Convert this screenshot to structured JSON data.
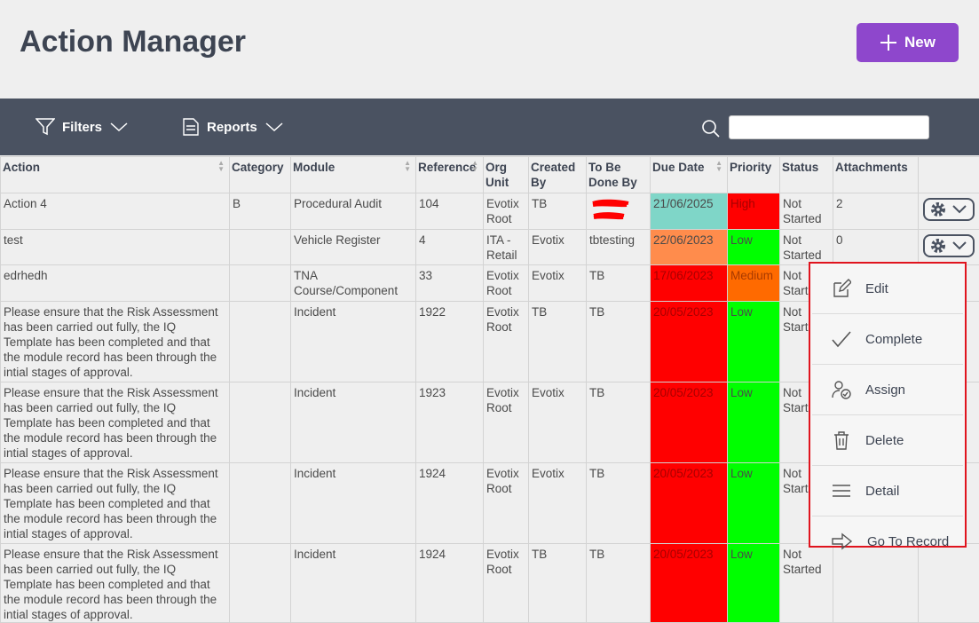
{
  "header": {
    "title": "Action Manager",
    "new_button": "New"
  },
  "toolbar": {
    "filters": "Filters",
    "reports": "Reports"
  },
  "table": {
    "columns": [
      "Action",
      "Category",
      "Module",
      "Reference",
      "Org Unit",
      "Created By",
      "To Be Done By",
      "Due Date",
      "Priority",
      "Status",
      "Attachments"
    ],
    "rows": [
      {
        "cells": [
          "Action 4",
          "B",
          "Procedural Audit",
          "104",
          "Evotix Root",
          "TB",
          null,
          "21/06/2025",
          "High",
          "Not Started",
          "2"
        ],
        "due_color": "#7fd6c8",
        "priority_color": "#ff0000",
        "redacted_column": 6
      },
      {
        "cells": [
          "test",
          null,
          "Vehicle Register",
          "4",
          "ITA - Retail",
          "Evotix",
          "tbtesting",
          "22/06/2023",
          "Low",
          "Not Started",
          "0"
        ],
        "due_color": "#ff8c4c",
        "priority_color": "#00ff00"
      },
      {
        "cells": [
          "edrhedh",
          null,
          "TNA Course/Component",
          "33",
          "Evotix Root",
          "Evotix",
          "TB",
          "17/06/2023",
          "Medium",
          "Not Started",
          null
        ],
        "due_color": "#ff0000",
        "priority_color": "#ff6a00"
      },
      {
        "cells": [
          "Please ensure that the Risk Assessment has been carried out fully, the IQ Template has been completed and that the module record has been through the intial stages of approval.",
          null,
          "Incident",
          "1922",
          "Evotix Root",
          "TB",
          "TB",
          "20/05/2023",
          "Low",
          "Not Started",
          null
        ],
        "due_color": "#ff0000",
        "priority_color": "#00ff00"
      },
      {
        "cells": [
          "Please ensure that the Risk Assessment has been carried out fully, the IQ Template has been completed and that the module record has been through the intial stages of approval.",
          null,
          "Incident",
          "1923",
          "Evotix Root",
          "Evotix",
          "TB",
          "20/05/2023",
          "Low",
          "Not Started",
          null
        ],
        "due_color": "#ff0000",
        "priority_color": "#00ff00"
      },
      {
        "cells": [
          "Please ensure that the Risk Assessment has been carried out fully, the IQ Template has been completed and that the module record has been through the intial stages of approval.",
          null,
          "Incident",
          "1924",
          "Evotix Root",
          "Evotix",
          "TB",
          "20/05/2023",
          "Low",
          "Not Started",
          null
        ],
        "due_color": "#ff0000",
        "priority_color": "#00ff00"
      },
      {
        "cells": [
          "Please ensure that the Risk Assessment has been carried out fully, the IQ Template has been completed and that the module record has been through the intial stages of approval.",
          null,
          "Incident",
          "1924",
          "Evotix Root",
          "TB",
          "TB",
          "20/05/2023",
          "Low",
          "Not Started",
          null
        ],
        "due_color": "#ff0000",
        "priority_color": "#00ff00"
      }
    ]
  },
  "menu": {
    "items": [
      "Edit",
      "Complete",
      "Assign",
      "Delete",
      "Detail",
      "Go To Record"
    ]
  }
}
